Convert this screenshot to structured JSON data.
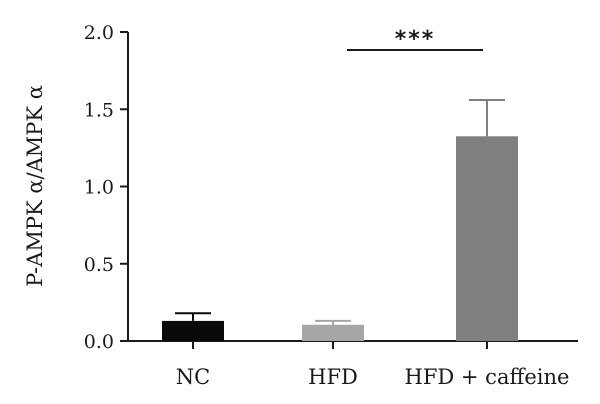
{
  "chart_data": {
    "type": "bar",
    "categories": [
      "NC",
      "HFD",
      "HFD + caffeine"
    ],
    "values": [
      0.13,
      0.105,
      1.325
    ],
    "errors": [
      0.05,
      0.025,
      0.235
    ],
    "colors": [
      "#0a0a0a",
      "#a6a6a6",
      "#7f7f7f"
    ],
    "ylabel": "P-AMPK α/AMPK α",
    "ylim": [
      0,
      2.0
    ],
    "yticks": [
      "0.0",
      "0.5",
      "1.0",
      "1.5",
      "2.0"
    ],
    "grid": false,
    "significance": {
      "from": "HFD",
      "to": "HFD + caffeine",
      "label": "***"
    }
  }
}
